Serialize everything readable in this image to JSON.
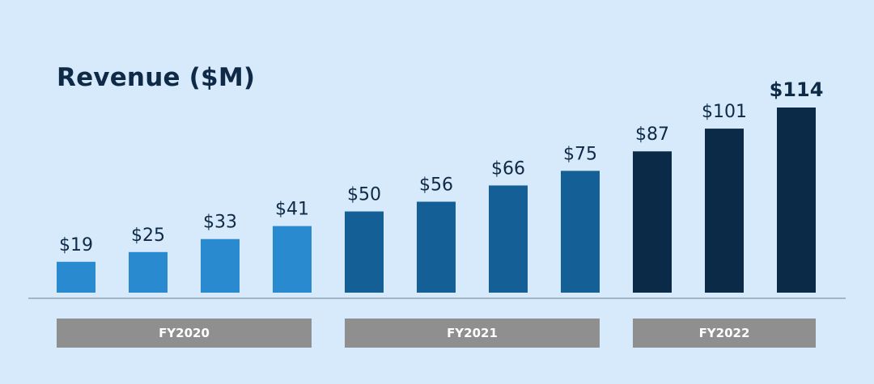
{
  "chart_data": {
    "type": "bar",
    "title": "Revenue ($M)",
    "categories": [
      "",
      "",
      "",
      "",
      "",
      "",
      "",
      "",
      "",
      "",
      ""
    ],
    "values": [
      19,
      25,
      33,
      41,
      50,
      56,
      66,
      75,
      87,
      101,
      114
    ],
    "labels": [
      "$19",
      "$25",
      "$33",
      "$41",
      "$50",
      "$56",
      "$66",
      "$75",
      "$87",
      "$101",
      "$114"
    ],
    "groups": [
      {
        "label": "FY2020",
        "color": "#2a8ad0",
        "start": 0,
        "end": 3
      },
      {
        "label": "FY2021",
        "color": "#135f96",
        "start": 4,
        "end": 7
      },
      {
        "label": "FY2022",
        "color": "#0b2a47",
        "start": 8,
        "end": 10
      }
    ],
    "highlight_index": 10,
    "group_band_color": "#8f8f8f",
    "baseline_color": "#8ea3b8",
    "ylim": [
      0,
      114
    ],
    "grid": false
  }
}
